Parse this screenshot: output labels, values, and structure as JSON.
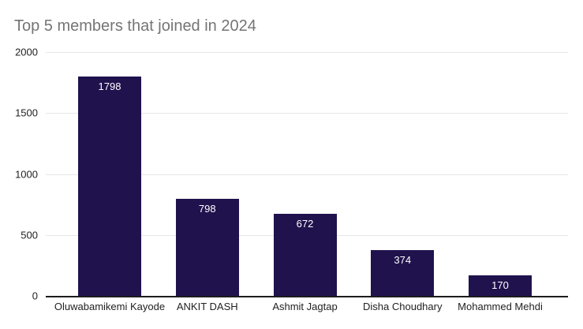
{
  "chart_data": {
    "type": "bar",
    "title": "Top 5 members that joined in 2024",
    "categories": [
      "Oluwabamikemi Kayode",
      "ANKIT DASH",
      "Ashmit Jagtap",
      "Disha Choudhary",
      "Mohammed Mehdi"
    ],
    "values": [
      1798,
      798,
      672,
      374,
      170
    ],
    "xlabel": "",
    "ylabel": "",
    "ylim": [
      0,
      2000
    ],
    "yticks": [
      0,
      500,
      1000,
      1500,
      2000
    ],
    "grid": true,
    "legend": false,
    "value_labels": true
  },
  "colors": {
    "background": "#ffffff",
    "bar": "#20124d",
    "title": "#757575",
    "gridline": "#e6e6e6",
    "axis_line": "#1c1c1c",
    "value_label": "#ffffff",
    "tick_label": "#222222"
  }
}
